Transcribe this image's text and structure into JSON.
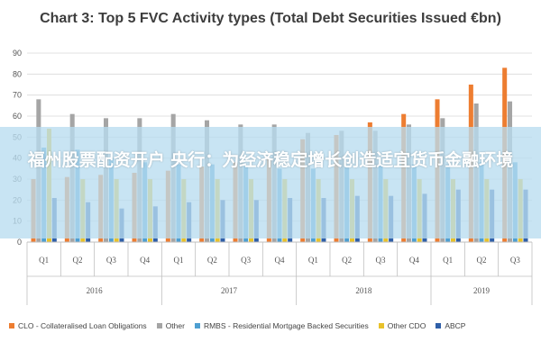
{
  "overlay_text": "福州股票配资开户 央行：为经济稳定增长创造适宜货币金融环境",
  "chart_data": {
    "type": "bar",
    "title": "Chart 3: Top 5 FVC Activity types (Total Debt Securities Issued €bn)",
    "xlabel": "",
    "ylabel": "",
    "ylim": [
      0,
      90
    ],
    "yticks": [
      0,
      10,
      20,
      30,
      40,
      50,
      60,
      70,
      80,
      90
    ],
    "grid": true,
    "legend_position": "bottom",
    "categories": [
      "Q1",
      "Q2",
      "Q3",
      "Q4",
      "Q1",
      "Q2",
      "Q3",
      "Q4",
      "Q1",
      "Q2",
      "Q3",
      "Q4",
      "Q1",
      "Q2",
      "Q3"
    ],
    "groups": [
      {
        "label": "2016",
        "count": 4
      },
      {
        "label": "2017",
        "count": 4
      },
      {
        "label": "2018",
        "count": 4
      },
      {
        "label": "2019",
        "count": 3
      }
    ],
    "series": [
      {
        "name": "CLO - Collateralised Loan Obligations",
        "color": "#ed7d31",
        "values": [
          30,
          31,
          32,
          33,
          34,
          36,
          38,
          40,
          49,
          51,
          57,
          61,
          68,
          75,
          83
        ]
      },
      {
        "name": "Other",
        "color": "#a5a5a5",
        "values": [
          68,
          61,
          59,
          59,
          61,
          58,
          56,
          56,
          52,
          53,
          53,
          56,
          59,
          66,
          67
        ]
      },
      {
        "name": "RMBS - Residential Mortgage Backed Securities",
        "color": "#4e9fd1",
        "values": [
          45,
          44,
          40,
          38,
          37,
          37,
          36,
          35,
          35,
          36,
          37,
          37,
          37,
          38,
          38
        ]
      },
      {
        "name": "Other CDO",
        "color": "#e8c22b",
        "values": [
          54,
          30,
          30,
          30,
          30,
          30,
          30,
          30,
          30,
          30,
          30,
          30,
          30,
          30,
          30
        ]
      },
      {
        "name": "ABCP",
        "color": "#2f5fa8",
        "values": [
          21,
          19,
          16,
          17,
          19,
          20,
          20,
          21,
          21,
          22,
          22,
          23,
          25,
          25,
          25
        ]
      }
    ]
  }
}
